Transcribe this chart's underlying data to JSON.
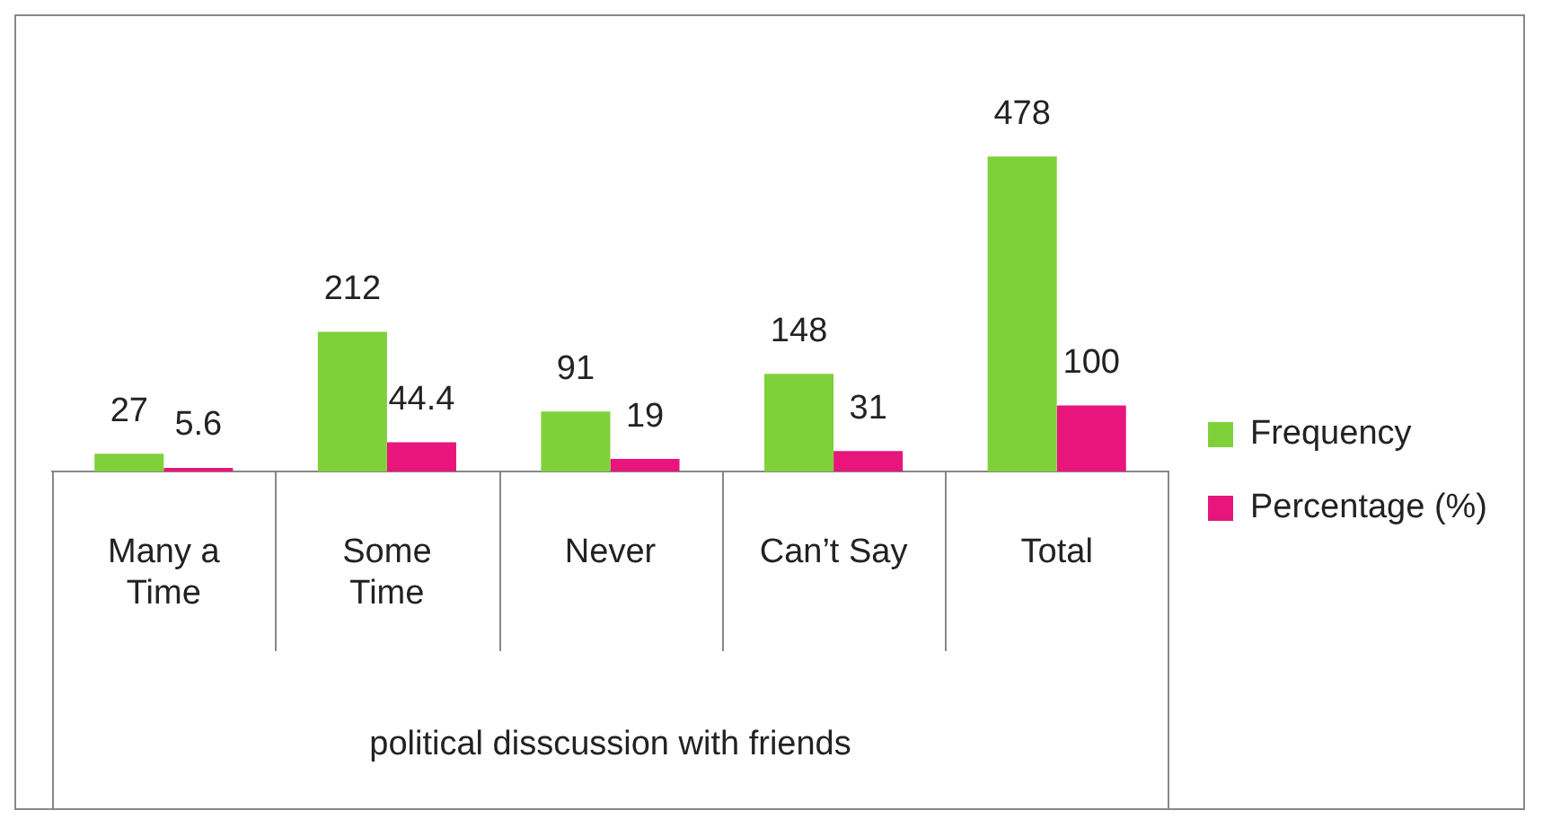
{
  "chart_data": {
    "type": "bar",
    "xlabel": "political disscussion with friends",
    "categories": [
      "Many  a Time",
      "Some Time",
      "Never",
      "Can’t Say",
      "Total"
    ],
    "series": [
      {
        "name": "Frequency",
        "color": "#7fd13b",
        "values": [
          27,
          212,
          91,
          148,
          478
        ]
      },
      {
        "name": "Percentage (%)",
        "color": "#e8157c",
        "values": [
          5.6,
          44.4,
          19,
          31,
          100
        ]
      }
    ],
    "data_labels": true,
    "legend": "right",
    "grid": false
  }
}
